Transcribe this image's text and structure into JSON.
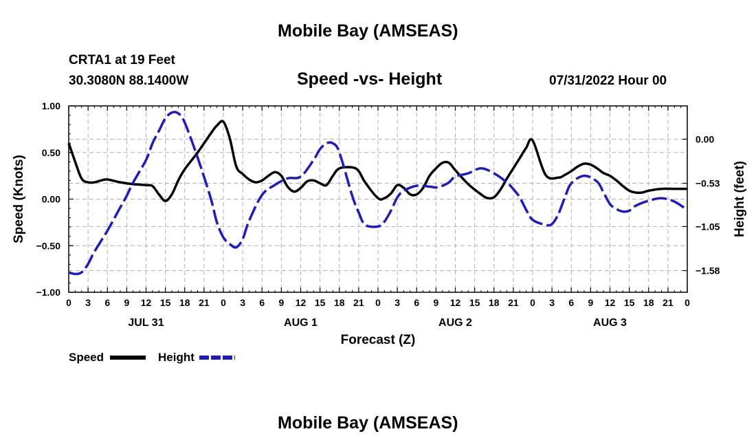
{
  "page": {
    "title": "Mobile Bay (AMSEAS)",
    "station": "CRTA1 at 19 Feet",
    "coords": "30.3080N  88.1400W",
    "subtitle": "Speed -vs- Height",
    "date": "07/31/2022 Hour 00",
    "bottom_title": "Mobile Bay (AMSEAS)"
  },
  "colors": {
    "speed": "#000000",
    "height": "#1a1acc",
    "grid": "#b0b0b0"
  },
  "chart_data": {
    "type": "line",
    "xlabel": "Forecast (Z)",
    "ylabel_left": "Speed (Knots)",
    "ylabel_right": "Height (feet)",
    "x_range": [
      0,
      96
    ],
    "x_ticks": [
      0,
      3,
      6,
      9,
      12,
      15,
      18,
      21,
      24,
      27,
      30,
      33,
      36,
      39,
      42,
      45,
      48,
      51,
      54,
      57,
      60,
      63,
      66,
      69,
      72,
      75,
      78,
      81,
      84,
      87,
      90,
      93,
      96
    ],
    "x_tick_labels": [
      "0",
      "3",
      "6",
      "9",
      "12",
      "15",
      "18",
      "21",
      "0",
      "3",
      "6",
      "9",
      "12",
      "15",
      "18",
      "21",
      "0",
      "3",
      "6",
      "9",
      "12",
      "15",
      "18",
      "21",
      "0",
      "3",
      "6",
      "9",
      "12",
      "15",
      "18",
      "21",
      "0"
    ],
    "day_labels": [
      {
        "x": 12,
        "label": "JUL 31"
      },
      {
        "x": 36,
        "label": "AUG 1"
      },
      {
        "x": 60,
        "label": "AUG 2"
      },
      {
        "x": 84,
        "label": "AUG 3"
      }
    ],
    "y_left": {
      "min": -1.0,
      "max": 1.0,
      "ticks": [
        -1.0,
        -0.5,
        0.0,
        0.5,
        1.0
      ],
      "tick_labels": [
        "−1.00",
        "−0.50",
        "0.00",
        "0.50",
        "1.00"
      ]
    },
    "y_right": {
      "min": -1.84,
      "max": 0.4,
      "ticks": [
        0.0,
        -0.53,
        -1.05,
        -1.58
      ],
      "tick_labels": [
        "0.00",
        "−0.53",
        "−1.05",
        "−1.58"
      ]
    },
    "series": [
      {
        "name": "Speed",
        "axis": "left",
        "style": "solid",
        "x": [
          0,
          1,
          2,
          3,
          4,
          5,
          6,
          8,
          10,
          12,
          13,
          14,
          15,
          16,
          17,
          18,
          20,
          22,
          23,
          24,
          25,
          26,
          27,
          28,
          29,
          30,
          31,
          32,
          33,
          34,
          35,
          36,
          37,
          38,
          39,
          40,
          41,
          42,
          44,
          45,
          46,
          48,
          49,
          50,
          51,
          52,
          53,
          54,
          55,
          56,
          57,
          58,
          59,
          60,
          62,
          64,
          65,
          66,
          67,
          68,
          69,
          70,
          71,
          72,
          74,
          76,
          77,
          78,
          79,
          80,
          81,
          82,
          83,
          84,
          85,
          86,
          87,
          88,
          89,
          90,
          92,
          94,
          95,
          96
        ],
        "values": [
          0.6,
          0.4,
          0.22,
          0.18,
          0.18,
          0.2,
          0.21,
          0.18,
          0.16,
          0.15,
          0.14,
          0.05,
          -0.02,
          0.05,
          0.2,
          0.32,
          0.5,
          0.7,
          0.79,
          0.83,
          0.65,
          0.35,
          0.27,
          0.21,
          0.18,
          0.2,
          0.25,
          0.29,
          0.25,
          0.13,
          0.08,
          0.12,
          0.19,
          0.2,
          0.17,
          0.15,
          0.25,
          0.33,
          0.34,
          0.3,
          0.18,
          0.01,
          0.01,
          0.06,
          0.15,
          0.12,
          0.05,
          0.05,
          0.12,
          0.25,
          0.33,
          0.39,
          0.39,
          0.31,
          0.16,
          0.05,
          0.01,
          0.02,
          0.1,
          0.22,
          0.33,
          0.44,
          0.55,
          0.63,
          0.26,
          0.23,
          0.26,
          0.3,
          0.35,
          0.38,
          0.37,
          0.33,
          0.28,
          0.25,
          0.2,
          0.14,
          0.09,
          0.07,
          0.07,
          0.09,
          0.11,
          0.11,
          0.11,
          0.11
        ]
      },
      {
        "name": "Height",
        "axis": "right",
        "style": "dashed",
        "x": [
          0,
          1,
          2,
          3,
          4,
          6,
          8,
          9,
          10,
          12,
          13,
          14,
          15,
          16,
          17,
          18,
          20,
          22,
          23,
          24,
          25,
          26,
          27,
          28,
          30,
          32,
          34,
          36,
          38,
          39,
          40,
          41,
          42,
          44,
          45,
          46,
          48,
          49,
          50,
          51,
          52,
          54,
          56,
          57,
          58,
          59,
          60,
          62,
          64,
          66,
          68,
          69,
          70,
          71,
          72,
          74,
          75,
          76,
          77,
          78,
          80,
          82,
          83,
          84,
          85,
          86,
          87,
          88,
          90,
          92,
          94,
          96
        ],
        "values": [
          -1.6,
          -1.62,
          -1.6,
          -1.5,
          -1.35,
          -1.1,
          -0.82,
          -0.68,
          -0.52,
          -0.25,
          -0.05,
          0.1,
          0.25,
          0.32,
          0.31,
          0.2,
          -0.22,
          -0.7,
          -1.0,
          -1.18,
          -1.26,
          -1.3,
          -1.2,
          -0.98,
          -0.67,
          -0.55,
          -0.47,
          -0.45,
          -0.25,
          -0.12,
          -0.05,
          -0.05,
          -0.16,
          -0.68,
          -0.88,
          -1.03,
          -1.05,
          -0.99,
          -0.86,
          -0.7,
          -0.62,
          -0.56,
          -0.57,
          -0.58,
          -0.56,
          -0.52,
          -0.45,
          -0.41,
          -0.35,
          -0.41,
          -0.52,
          -0.6,
          -0.7,
          -0.85,
          -0.97,
          -1.03,
          -1.02,
          -0.9,
          -0.7,
          -0.53,
          -0.44,
          -0.51,
          -0.64,
          -0.78,
          -0.84,
          -0.87,
          -0.86,
          -0.8,
          -0.74,
          -0.71,
          -0.75,
          -0.85
        ]
      }
    ],
    "legend": [
      {
        "label": "Speed",
        "color": "#000000"
      },
      {
        "label": "Height",
        "color": "#1a1acc"
      }
    ]
  }
}
